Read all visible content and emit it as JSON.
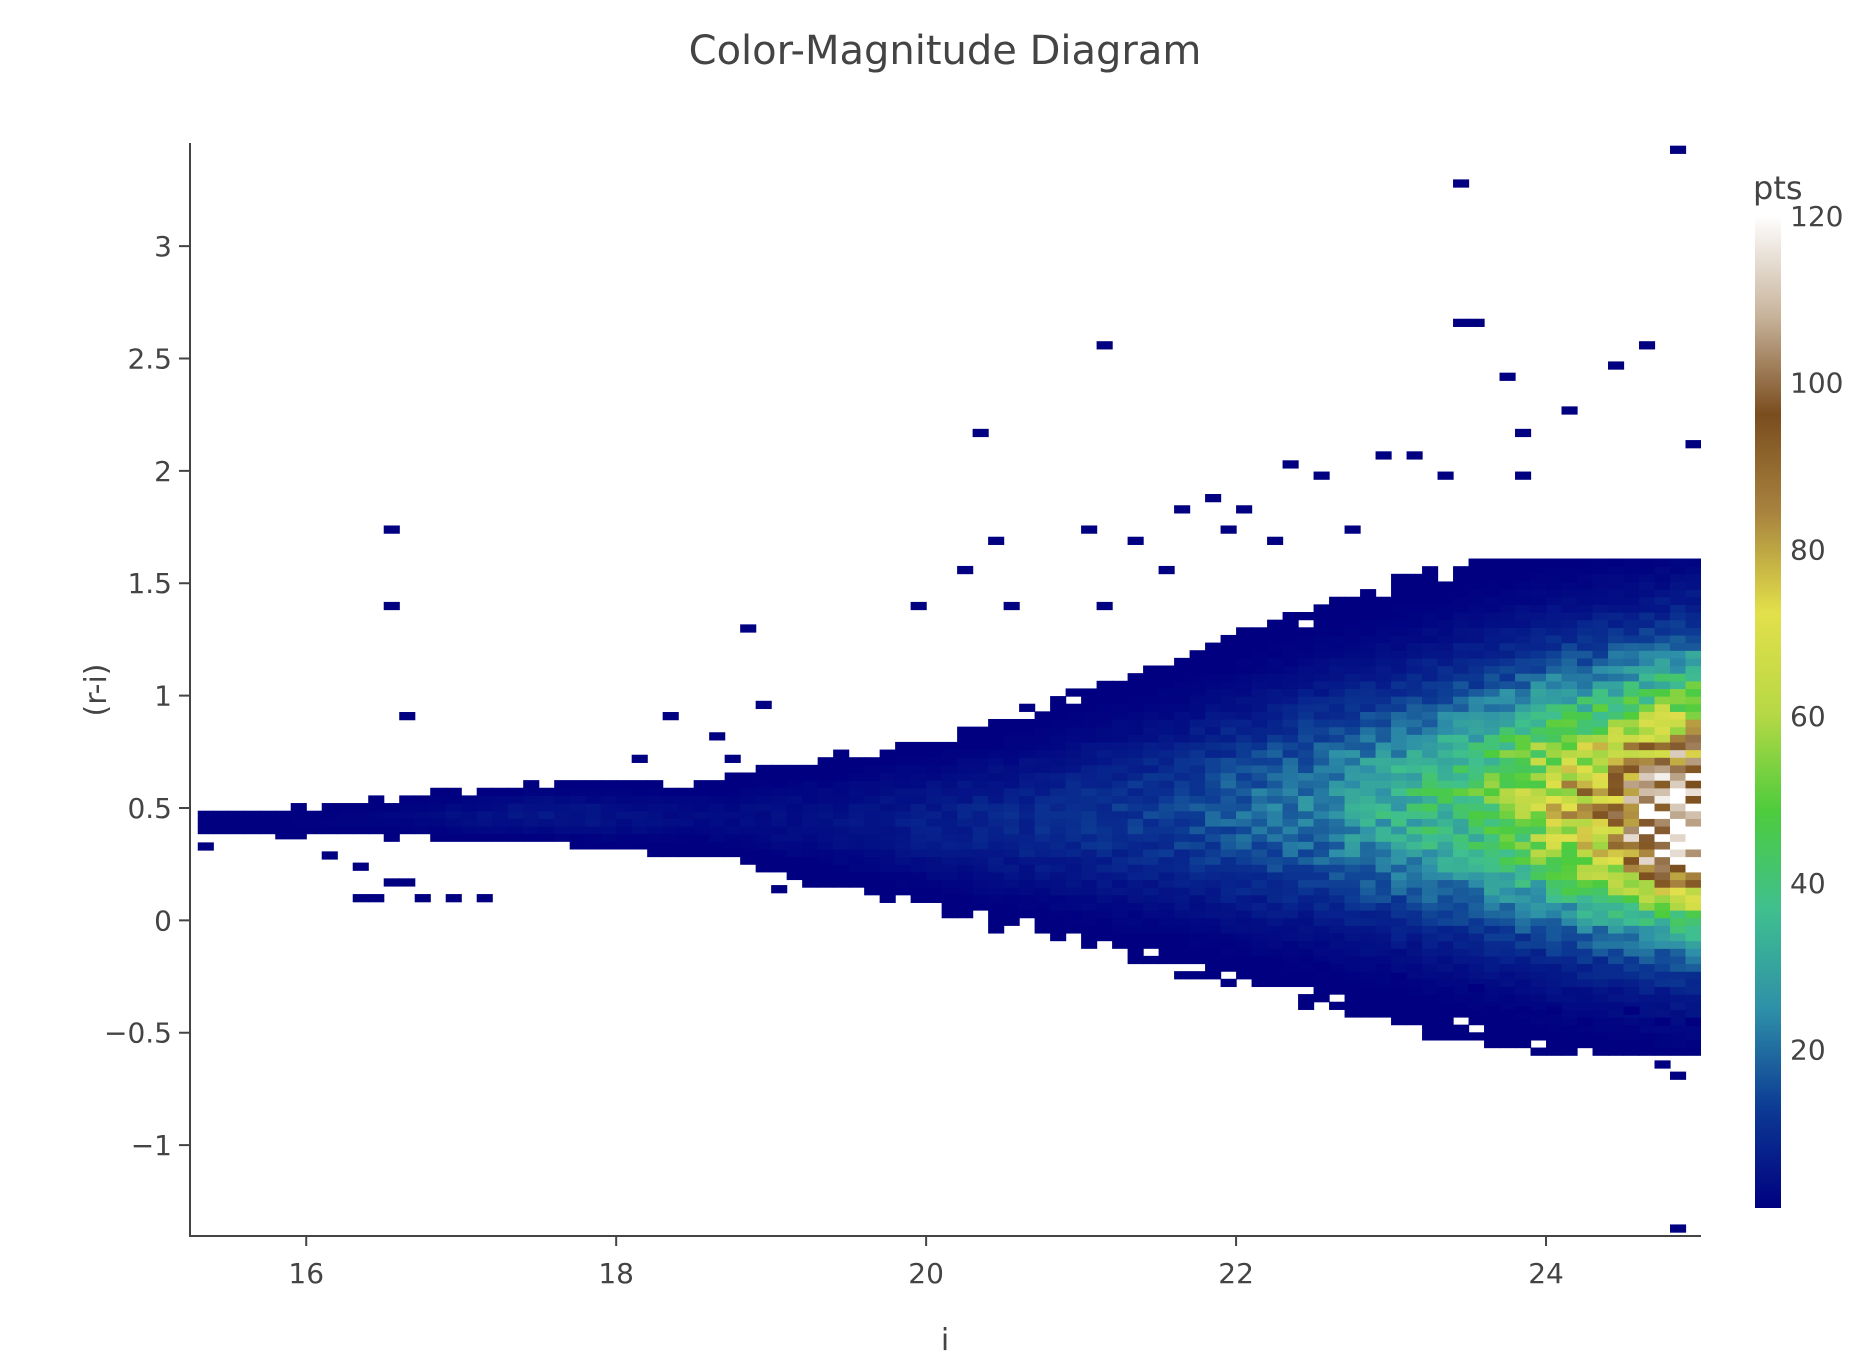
{
  "chart_data": {
    "type": "heatmap",
    "title": "Color-Magnitude Diagram",
    "xlabel": "i",
    "ylabel": "(r-i)",
    "xlim": [
      15.25,
      25.0
    ],
    "ylim": [
      -1.4,
      3.45
    ],
    "x_ticks": [
      16,
      18,
      20,
      22,
      24
    ],
    "y_ticks": [
      -1,
      -0.5,
      0,
      0.5,
      1,
      1.5,
      2,
      2.5,
      3
    ],
    "y_tick_labels": [
      "−1",
      "−0.5",
      "0",
      "0.5",
      "1",
      "1.5",
      "2",
      "2.5",
      "3"
    ],
    "bin_width_x": 0.1,
    "bin_width_y": 0.034,
    "colorbar": {
      "title": "pts",
      "range": [
        1,
        120
      ],
      "ticks": [
        20,
        40,
        60,
        80,
        100,
        120
      ],
      "colorscale": [
        "#000080",
        "#0c3a94",
        "#2e90a8",
        "#3fbf8f",
        "#4dcc3d",
        "#b8d845",
        "#e2e04a",
        "#a8843f",
        "#7a4d1e",
        "#c8b49c",
        "#ffffff"
      ]
    },
    "grid": false,
    "density_ridge": [
      {
        "x": 15.8,
        "y": 0.42,
        "w": 0.04
      },
      {
        "x": 16.5,
        "y": 0.44,
        "w": 0.05
      },
      {
        "x": 17.5,
        "y": 0.46,
        "w": 0.06
      },
      {
        "x": 18.5,
        "y": 0.44,
        "w": 0.08
      },
      {
        "x": 19.5,
        "y": 0.42,
        "w": 0.14
      },
      {
        "x": 20.5,
        "y": 0.42,
        "w": 0.19
      },
      {
        "x": 21.5,
        "y": 0.46,
        "w": 0.26
      },
      {
        "x": 22.5,
        "y": 0.5,
        "w": 0.31
      },
      {
        "x": 23.5,
        "y": 0.52,
        "w": 0.35
      },
      {
        "x": 24.5,
        "y": 0.52,
        "w": 0.37
      },
      {
        "x": 25.0,
        "y": 0.52,
        "w": 0.38
      }
    ],
    "peak_counts": [
      {
        "x": 15.8,
        "n": 1
      },
      {
        "x": 16.5,
        "n": 2
      },
      {
        "x": 17.5,
        "n": 6
      },
      {
        "x": 18.5,
        "n": 3
      },
      {
        "x": 19.5,
        "n": 5
      },
      {
        "x": 20.5,
        "n": 9
      },
      {
        "x": 21.5,
        "n": 13
      },
      {
        "x": 22.5,
        "n": 24
      },
      {
        "x": 23.5,
        "n": 44
      },
      {
        "x": 24.5,
        "n": 88
      },
      {
        "x": 25.0,
        "n": 115
      }
    ],
    "high_density_cluster": {
      "x": 24.8,
      "y": 0.3,
      "peak": 120
    },
    "outliers": [
      [
        15.3,
        0.33
      ],
      [
        15.6,
        0.43
      ],
      [
        15.8,
        0.38
      ],
      [
        15.9,
        0.38
      ],
      [
        16.1,
        0.29
      ],
      [
        16.3,
        0.24
      ],
      [
        16.3,
        0.1
      ],
      [
        16.4,
        0.1
      ],
      [
        16.5,
        0.17
      ],
      [
        16.6,
        0.17
      ],
      [
        16.7,
        0.1
      ],
      [
        16.9,
        0.1
      ],
      [
        17.1,
        0.1
      ],
      [
        16.5,
        1.74
      ],
      [
        16.5,
        1.4
      ],
      [
        16.6,
        0.91
      ],
      [
        18.1,
        0.72
      ],
      [
        18.3,
        0.91
      ],
      [
        18.6,
        0.82
      ],
      [
        18.7,
        0.72
      ],
      [
        18.8,
        1.3
      ],
      [
        18.9,
        0.96
      ],
      [
        19.0,
        0.14
      ],
      [
        20.1,
        0.1
      ],
      [
        19.9,
        1.4
      ],
      [
        20.2,
        1.56
      ],
      [
        20.3,
        2.17
      ],
      [
        20.4,
        1.69
      ],
      [
        20.5,
        1.4
      ],
      [
        21.1,
        2.56
      ],
      [
        21.0,
        1.74
      ],
      [
        21.1,
        1.4
      ],
      [
        21.3,
        1.69
      ],
      [
        21.5,
        1.56
      ],
      [
        21.6,
        1.83
      ],
      [
        21.8,
        1.88
      ],
      [
        22.0,
        1.83
      ],
      [
        21.9,
        1.74
      ],
      [
        22.2,
        1.69
      ],
      [
        22.3,
        2.03
      ],
      [
        22.5,
        1.98
      ],
      [
        22.7,
        1.74
      ],
      [
        22.9,
        2.07
      ],
      [
        23.1,
        2.07
      ],
      [
        23.3,
        1.98
      ],
      [
        23.4,
        3.28
      ],
      [
        23.4,
        2.66
      ],
      [
        23.5,
        2.66
      ],
      [
        23.7,
        2.42
      ],
      [
        23.8,
        2.17
      ],
      [
        23.8,
        1.98
      ],
      [
        24.1,
        2.27
      ],
      [
        24.4,
        2.47
      ],
      [
        24.6,
        2.56
      ],
      [
        24.8,
        3.43
      ],
      [
        24.9,
        2.12
      ],
      [
        21.8,
        -0.15
      ],
      [
        22.2,
        -0.2
      ],
      [
        22.5,
        -0.2
      ],
      [
        23.0,
        -0.25
      ],
      [
        23.5,
        -0.3
      ],
      [
        23.6,
        -0.4
      ],
      [
        23.8,
        -0.4
      ],
      [
        24.0,
        -0.4
      ],
      [
        24.2,
        -0.45
      ],
      [
        24.5,
        -0.4
      ],
      [
        24.7,
        -0.45
      ],
      [
        24.9,
        -0.45
      ],
      [
        24.7,
        -0.64
      ],
      [
        24.8,
        -0.69
      ],
      [
        24.8,
        -1.37
      ]
    ]
  }
}
